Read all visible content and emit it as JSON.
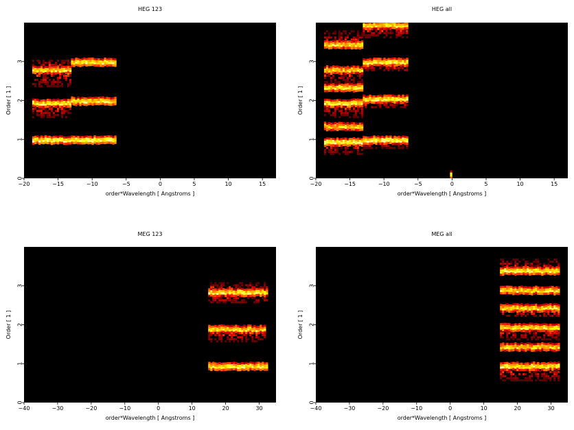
{
  "chart_data": [
    {
      "type": "heatmap",
      "title": "HEG 123",
      "xlabel": "order*Wavelength [ Angstroms ]",
      "ylabel": "Order [ 1 ]",
      "xlim": [
        -20,
        17
      ],
      "ylim": [
        0,
        4
      ],
      "xticks": [
        -20,
        -15,
        -10,
        -5,
        0,
        5,
        10,
        15
      ],
      "yticks": [
        0,
        1,
        2,
        3
      ],
      "colormap": "black-red-yellow-white",
      "bands": [
        {
          "x0": -18.8,
          "x1": -13.1,
          "yc": 1.0,
          "intensity": 0.95
        },
        {
          "x0": -13.1,
          "x1": -6.7,
          "yc": 1.0,
          "intensity": 0.95
        },
        {
          "x0": -18.8,
          "x1": -13.1,
          "yc": 1.95,
          "intensity": 0.9,
          "noise_below": 0.8
        },
        {
          "x0": -13.1,
          "x1": -6.7,
          "yc": 2.0,
          "intensity": 0.9
        },
        {
          "x0": -18.8,
          "x1": -13.1,
          "yc": 2.8,
          "intensity": 0.85,
          "noise_below": 0.9,
          "noise_above": 0.5
        },
        {
          "x0": -13.1,
          "x1": -6.7,
          "yc": 3.0,
          "intensity": 0.9
        }
      ]
    },
    {
      "type": "heatmap",
      "title": "HEG all",
      "xlabel": "order*Wavelength [ Angstroms ]",
      "ylabel": "Order [ 1 ]",
      "xlim": [
        -20,
        17
      ],
      "ylim": [
        0,
        4
      ],
      "xticks": [
        -20,
        -15,
        -10,
        -5,
        0,
        5,
        10,
        15
      ],
      "yticks": [
        0,
        1,
        2,
        3
      ],
      "colormap": "black-red-yellow-white",
      "bands": [
        {
          "x0": -18.8,
          "x1": -13.1,
          "yc": 0.95,
          "intensity": 0.95,
          "noise_below": 0.6
        },
        {
          "x0": -13.1,
          "x1": -6.7,
          "yc": 1.0,
          "intensity": 0.95,
          "noise_below": 0.3
        },
        {
          "x0": -18.8,
          "x1": -13.1,
          "yc": 1.35,
          "intensity": 0.8
        },
        {
          "x0": -18.8,
          "x1": -13.1,
          "yc": 1.95,
          "intensity": 0.9,
          "noise_below": 0.7
        },
        {
          "x0": -13.1,
          "x1": -6.7,
          "yc": 2.05,
          "intensity": 0.9,
          "noise_below": 0.4
        },
        {
          "x0": -18.8,
          "x1": -13.1,
          "yc": 2.35,
          "intensity": 0.85
        },
        {
          "x0": -18.8,
          "x1": -13.1,
          "yc": 2.8,
          "intensity": 0.8,
          "noise_below": 0.6
        },
        {
          "x0": -13.1,
          "x1": -6.7,
          "yc": 3.0,
          "intensity": 0.9,
          "noise_below": 0.4
        },
        {
          "x0": -18.8,
          "x1": -13.1,
          "yc": 3.45,
          "intensity": 0.85,
          "noise_above": 0.8
        },
        {
          "x0": -13.1,
          "x1": -6.7,
          "yc": 3.95,
          "intensity": 0.85,
          "noise_below": 0.6
        },
        {
          "x0": -0.3,
          "x1": 0.0,
          "yc": 0.1,
          "intensity": 0.9
        }
      ]
    },
    {
      "type": "heatmap",
      "title": "MEG 123",
      "xlabel": "order*Wavelength [ Angstroms ]",
      "ylabel": "Order [ 1 ]",
      "xlim": [
        -40,
        35
      ],
      "ylim": [
        0,
        4
      ],
      "xticks": [
        -40,
        -30,
        -20,
        -10,
        0,
        10,
        20,
        30
      ],
      "yticks": [
        0,
        1,
        2,
        3
      ],
      "colormap": "black-red-yellow-white",
      "bands": [
        {
          "x0": 14.8,
          "x1": 32.5,
          "yc": 0.95,
          "intensity": 0.9
        },
        {
          "x0": 14.8,
          "x1": 31.5,
          "yc": 1.9,
          "intensity": 0.85,
          "noise_below": 0.6
        },
        {
          "x0": 14.8,
          "x1": 32.5,
          "yc": 2.85,
          "intensity": 0.9,
          "noise_below": 0.5,
          "noise_above": 0.4
        }
      ]
    },
    {
      "type": "heatmap",
      "title": "MEG all",
      "xlabel": "order*Wavelength [ Angstroms ]",
      "ylabel": "Order [ 1 ]",
      "xlim": [
        -40,
        35
      ],
      "ylim": [
        0,
        4
      ],
      "xticks": [
        -40,
        -30,
        -20,
        -10,
        0,
        10,
        20,
        30
      ],
      "yticks": [
        0,
        1,
        2,
        3
      ],
      "colormap": "black-red-yellow-white",
      "bands": [
        {
          "x0": 14.8,
          "x1": 32.5,
          "yc": 0.95,
          "intensity": 0.9,
          "noise_below": 0.7
        },
        {
          "x0": 14.8,
          "x1": 32.5,
          "yc": 1.45,
          "intensity": 0.8
        },
        {
          "x0": 14.8,
          "x1": 32.5,
          "yc": 1.95,
          "intensity": 0.85,
          "noise_below": 0.6
        },
        {
          "x0": 14.8,
          "x1": 32.5,
          "yc": 2.45,
          "intensity": 0.85,
          "noise_below": 0.4
        },
        {
          "x0": 14.8,
          "x1": 32.5,
          "yc": 2.9,
          "intensity": 0.85
        },
        {
          "x0": 14.8,
          "x1": 32.5,
          "yc": 3.4,
          "intensity": 0.9,
          "noise_above": 0.6
        }
      ]
    }
  ]
}
